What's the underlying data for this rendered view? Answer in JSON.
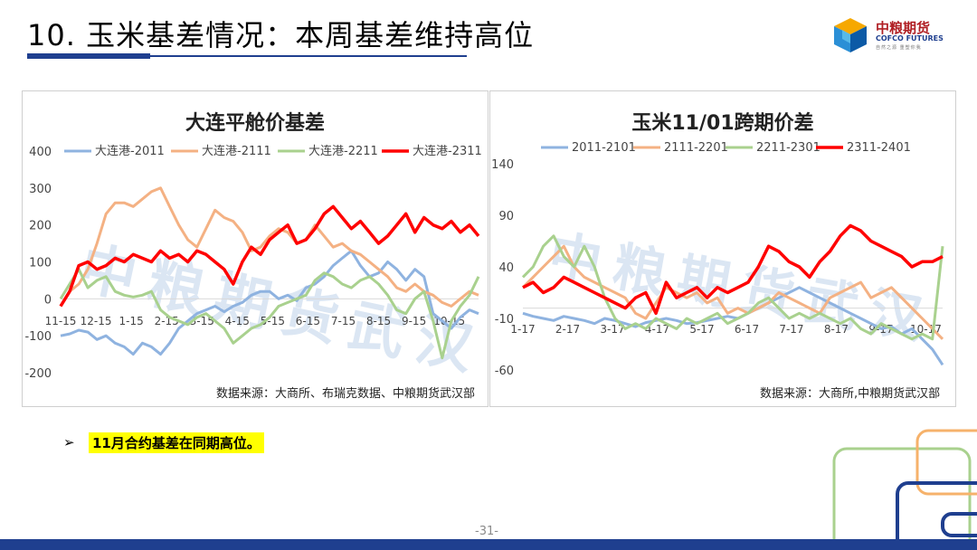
{
  "slide": {
    "title": "10. 玉米基差情况：本周基差维持高位",
    "bullet_marker": "➢",
    "bullet_text": "11月合约基差在同期高位。",
    "page_number": "-31-"
  },
  "logo": {
    "name_cn": "中粮期货",
    "name_en": "COFCO FUTURES",
    "tagline": "自然之源 重塑你我"
  },
  "colors": {
    "navy": "#1f3f8f",
    "series_blue": "#8fb3e0",
    "series_orange": "#f4b183",
    "series_green": "#a9d18e",
    "series_red": "#ff0000",
    "highlight": "#ffff00"
  },
  "chart_data": [
    {
      "type": "line",
      "title": "大连平舱价基差",
      "watermark": "中粮期货武汉",
      "source": "数据来源：大商所、布瑞克数据、中粮期货武汉部",
      "ylim": [
        -200,
        400
      ],
      "yticks": [
        400,
        300,
        200,
        100,
        0,
        -100,
        -200
      ],
      "x_tick_labels": [
        "11-15",
        "12-15",
        "1-15",
        "2-15",
        "3-15",
        "4-15",
        "5-15",
        "6-15",
        "7-15",
        "8-15",
        "9-15",
        "10-15"
      ],
      "legend_position": "top",
      "series": [
        {
          "name": "大连港-2011",
          "color": "#8fb3e0",
          "width": 3,
          "values": [
            -100,
            -95,
            -85,
            -90,
            -110,
            -100,
            -120,
            -130,
            -150,
            -120,
            -130,
            -150,
            -120,
            -80,
            -60,
            -40,
            -30,
            -20,
            -35,
            -20,
            -10,
            10,
            20,
            20,
            0,
            10,
            -5,
            30,
            40,
            60,
            90,
            110,
            130,
            90,
            60,
            70,
            100,
            80,
            50,
            80,
            60,
            -40,
            -60,
            -80,
            -50,
            -30,
            -40
          ]
        },
        {
          "name": "大连港-2111",
          "color": "#f4b183",
          "width": 3,
          "values": [
            -20,
            20,
            40,
            80,
            150,
            230,
            260,
            260,
            250,
            270,
            290,
            300,
            250,
            200,
            160,
            140,
            190,
            240,
            220,
            210,
            180,
            130,
            140,
            170,
            190,
            180,
            150,
            160,
            200,
            170,
            140,
            150,
            130,
            120,
            100,
            80,
            60,
            30,
            20,
            40,
            20,
            10,
            -10,
            -20,
            0,
            20,
            10
          ]
        },
        {
          "name": "大连港-2211",
          "color": "#a9d18e",
          "width": 3,
          "values": [
            0,
            40,
            80,
            30,
            50,
            60,
            20,
            10,
            5,
            10,
            20,
            -30,
            -50,
            -60,
            -70,
            -50,
            -40,
            -60,
            -80,
            -120,
            -100,
            -80,
            -70,
            -50,
            -20,
            -10,
            0,
            10,
            50,
            70,
            60,
            40,
            30,
            50,
            60,
            40,
            10,
            -30,
            -40,
            0,
            20,
            -60,
            -160,
            -60,
            -20,
            10,
            60
          ]
        },
        {
          "name": "大连港-2311",
          "color": "#ff0000",
          "width": 3.5,
          "values": [
            -20,
            20,
            90,
            100,
            80,
            90,
            110,
            100,
            120,
            110,
            100,
            130,
            110,
            120,
            100,
            130,
            120,
            100,
            80,
            40,
            100,
            140,
            120,
            160,
            180,
            200,
            150,
            160,
            190,
            230,
            250,
            220,
            190,
            210,
            180,
            150,
            170,
            200,
            230,
            180,
            220,
            200,
            190,
            210,
            180,
            200,
            170
          ]
        }
      ]
    },
    {
      "type": "line",
      "title": "玉米11/01跨期价差",
      "watermark": "中粮期货武汉",
      "source": "数据来源：大商所,中粮期货武汉部",
      "ylim": [
        -60,
        140
      ],
      "yticks": [
        140,
        90,
        40,
        -10,
        -60
      ],
      "x_tick_labels": [
        "1-17",
        "2-17",
        "3-17",
        "4-17",
        "5-17",
        "6-17",
        "7-17",
        "8-17",
        "9-17",
        "10-17"
      ],
      "legend_position": "top",
      "series": [
        {
          "name": "2011-2101",
          "color": "#8fb3e0",
          "width": 3,
          "values": [
            -5,
            -8,
            -10,
            -12,
            -8,
            -10,
            -12,
            -15,
            -10,
            -12,
            -15,
            -18,
            -14,
            -12,
            -10,
            -12,
            -15,
            -14,
            -12,
            -10,
            -8,
            -10,
            -5,
            0,
            5,
            10,
            15,
            20,
            15,
            10,
            5,
            0,
            -5,
            -10,
            -15,
            -20,
            -18,
            -25,
            -20,
            -30,
            -40,
            -55
          ]
        },
        {
          "name": "2111-2201",
          "color": "#f4b183",
          "width": 3,
          "values": [
            20,
            30,
            40,
            50,
            60,
            40,
            30,
            25,
            20,
            15,
            10,
            -5,
            -10,
            5,
            20,
            15,
            10,
            15,
            5,
            10,
            -5,
            0,
            -5,
            0,
            5,
            15,
            10,
            5,
            0,
            -5,
            10,
            15,
            20,
            25,
            10,
            15,
            20,
            10,
            0,
            -10,
            -20,
            -30
          ]
        },
        {
          "name": "2211-2301",
          "color": "#a9d18e",
          "width": 3,
          "values": [
            30,
            40,
            60,
            70,
            50,
            40,
            60,
            40,
            10,
            -10,
            -20,
            -15,
            -20,
            -10,
            -15,
            -20,
            -10,
            -15,
            -10,
            -5,
            -15,
            -10,
            -5,
            5,
            10,
            0,
            -10,
            -5,
            -10,
            -5,
            -10,
            -15,
            -10,
            -20,
            -25,
            -15,
            -20,
            -25,
            -30,
            -25,
            -30,
            60
          ]
        },
        {
          "name": "2311-2401",
          "color": "#ff0000",
          "width": 3.5,
          "values": [
            20,
            25,
            15,
            20,
            30,
            25,
            20,
            15,
            10,
            5,
            0,
            10,
            15,
            -5,
            25,
            10,
            15,
            20,
            10,
            20,
            15,
            20,
            25,
            40,
            60,
            55,
            45,
            40,
            30,
            45,
            55,
            70,
            80,
            75,
            65,
            60,
            55,
            50,
            40,
            45,
            45,
            50
          ]
        }
      ]
    }
  ]
}
